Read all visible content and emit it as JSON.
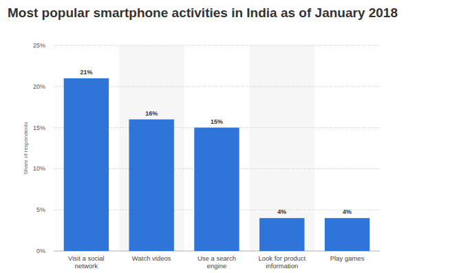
{
  "chart_data": {
    "type": "bar",
    "title": "Most popular smartphone activities in India as of January 2018",
    "ylabel": "Share of respondents",
    "categories": [
      "Visit a social network",
      "Watch videos",
      "Use a search engine",
      "Look for product information",
      "Play games"
    ],
    "values": [
      21,
      16,
      15,
      4,
      4
    ],
    "value_labels": [
      "21%",
      "16%",
      "15%",
      "4%",
      "4%"
    ],
    "color": "#2f74d9",
    "ylim": [
      0,
      25
    ],
    "yticks": [
      {
        "value": 0,
        "label": "0%"
      },
      {
        "value": 5,
        "label": "5%"
      },
      {
        "value": 10,
        "label": "10%"
      },
      {
        "value": 15,
        "label": "15%"
      },
      {
        "value": 20,
        "label": "20%"
      },
      {
        "value": 25,
        "label": "25%"
      }
    ],
    "grid": true,
    "data_labels": true
  }
}
